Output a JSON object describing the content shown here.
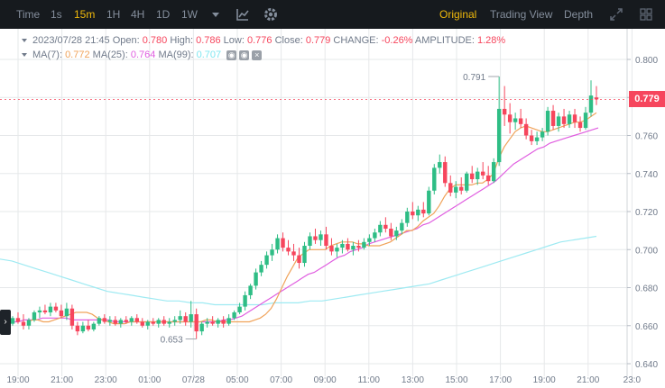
{
  "toolbar": {
    "intervals": [
      "Time",
      "1s",
      "15m",
      "1H",
      "4H",
      "1D",
      "1W"
    ],
    "active_interval": "15m",
    "views": [
      "Original",
      "Trading View",
      "Depth"
    ],
    "active_view": "Original",
    "icons": [
      "chevron-down-icon",
      "indicator-icon",
      "gear-icon",
      "expand-icon",
      "grid-icon"
    ]
  },
  "ohlc": {
    "datetime": "2023/07/28 21:45",
    "open_label": "Open:",
    "open": "0.780",
    "high_label": "High:",
    "high": "0.786",
    "low_label": "Low:",
    "low": "0.776",
    "close_label": "Close:",
    "close": "0.779",
    "change_label": "CHANGE:",
    "change": "-0.26%",
    "amplitude_label": "AMPLITUDE:",
    "amplitude": "1.28%"
  },
  "ma": {
    "ma7_label": "MA(7):",
    "ma7": "0.772",
    "ma25_label": "MA(25):",
    "ma25": "0.764",
    "ma99_label": "MA(99):",
    "ma99": "0.707"
  },
  "last_price": "0.779",
  "colors": {
    "up": "#2ebd85",
    "down": "#f6465d",
    "ma7": "#f0a35a",
    "ma25": "#e05ee0",
    "ma99": "#9eeaf2",
    "accent": "#f0b90b"
  },
  "chart_data": {
    "type": "candlestick",
    "y_ticks": [
      "0.800",
      "0.780",
      "0.760",
      "0.740",
      "0.720",
      "0.700",
      "0.680",
      "0.660",
      "0.640"
    ],
    "y_range": [
      0.64,
      0.8
    ],
    "x_ticks": [
      "19:00",
      "21:00",
      "23:00",
      "01:00",
      "07/28",
      "05:00",
      "07:00",
      "09:00",
      "11:00",
      "13:00",
      "15:00",
      "17:00",
      "19:00",
      "21:00",
      "23:0"
    ],
    "max_marker": "0.791",
    "min_marker": "0.653",
    "candles": [
      [
        0.661,
        0.663,
        0.658,
        0.661
      ],
      [
        0.661,
        0.665,
        0.66,
        0.664
      ],
      [
        0.664,
        0.667,
        0.661,
        0.662
      ],
      [
        0.662,
        0.666,
        0.658,
        0.66
      ],
      [
        0.66,
        0.664,
        0.658,
        0.663
      ],
      [
        0.663,
        0.668,
        0.662,
        0.667
      ],
      [
        0.667,
        0.67,
        0.664,
        0.668
      ],
      [
        0.668,
        0.671,
        0.666,
        0.667
      ],
      [
        0.667,
        0.672,
        0.665,
        0.67
      ],
      [
        0.67,
        0.672,
        0.667,
        0.668
      ],
      [
        0.668,
        0.671,
        0.664,
        0.665
      ],
      [
        0.665,
        0.672,
        0.663,
        0.669
      ],
      [
        0.669,
        0.671,
        0.658,
        0.66
      ],
      [
        0.66,
        0.662,
        0.655,
        0.657
      ],
      [
        0.657,
        0.662,
        0.656,
        0.66
      ],
      [
        0.66,
        0.663,
        0.657,
        0.658
      ],
      [
        0.658,
        0.662,
        0.657,
        0.661
      ],
      [
        0.661,
        0.665,
        0.66,
        0.664
      ],
      [
        0.664,
        0.666,
        0.661,
        0.662
      ],
      [
        0.662,
        0.665,
        0.66,
        0.663
      ],
      [
        0.663,
        0.665,
        0.66,
        0.661
      ],
      [
        0.661,
        0.664,
        0.659,
        0.663
      ],
      [
        0.663,
        0.665,
        0.661,
        0.662
      ],
      [
        0.662,
        0.665,
        0.66,
        0.664
      ],
      [
        0.664,
        0.666,
        0.661,
        0.662
      ],
      [
        0.662,
        0.664,
        0.659,
        0.66
      ],
      [
        0.66,
        0.663,
        0.658,
        0.662
      ],
      [
        0.662,
        0.664,
        0.66,
        0.661
      ],
      [
        0.661,
        0.664,
        0.659,
        0.663
      ],
      [
        0.663,
        0.665,
        0.66,
        0.661
      ],
      [
        0.661,
        0.664,
        0.659,
        0.662
      ],
      [
        0.662,
        0.665,
        0.66,
        0.663
      ],
      [
        0.663,
        0.668,
        0.661,
        0.665
      ],
      [
        0.665,
        0.667,
        0.66,
        0.662
      ],
      [
        0.662,
        0.673,
        0.659,
        0.666
      ],
      [
        0.666,
        0.669,
        0.653,
        0.657
      ],
      [
        0.657,
        0.662,
        0.655,
        0.661
      ],
      [
        0.661,
        0.664,
        0.659,
        0.662
      ],
      [
        0.662,
        0.665,
        0.66,
        0.661
      ],
      [
        0.661,
        0.664,
        0.659,
        0.663
      ],
      [
        0.663,
        0.665,
        0.659,
        0.661
      ],
      [
        0.661,
        0.666,
        0.66,
        0.664
      ],
      [
        0.664,
        0.668,
        0.663,
        0.667
      ],
      [
        0.667,
        0.672,
        0.666,
        0.67
      ],
      [
        0.67,
        0.678,
        0.668,
        0.676
      ],
      [
        0.676,
        0.682,
        0.674,
        0.681
      ],
      [
        0.681,
        0.69,
        0.679,
        0.688
      ],
      [
        0.688,
        0.694,
        0.686,
        0.692
      ],
      [
        0.692,
        0.699,
        0.69,
        0.697
      ],
      [
        0.697,
        0.703,
        0.694,
        0.7
      ],
      [
        0.7,
        0.708,
        0.698,
        0.706
      ],
      [
        0.706,
        0.709,
        0.699,
        0.701
      ],
      [
        0.701,
        0.705,
        0.697,
        0.699
      ],
      [
        0.699,
        0.703,
        0.694,
        0.697
      ],
      [
        0.697,
        0.701,
        0.69,
        0.693
      ],
      [
        0.693,
        0.704,
        0.691,
        0.702
      ],
      [
        0.702,
        0.709,
        0.7,
        0.707
      ],
      [
        0.707,
        0.711,
        0.703,
        0.705
      ],
      [
        0.705,
        0.71,
        0.702,
        0.708
      ],
      [
        0.708,
        0.712,
        0.7,
        0.702
      ],
      [
        0.702,
        0.706,
        0.697,
        0.699
      ],
      [
        0.699,
        0.703,
        0.696,
        0.701
      ],
      [
        0.701,
        0.705,
        0.698,
        0.703
      ],
      [
        0.703,
        0.706,
        0.699,
        0.7
      ],
      [
        0.7,
        0.704,
        0.697,
        0.702
      ],
      [
        0.702,
        0.705,
        0.699,
        0.701
      ],
      [
        0.701,
        0.706,
        0.7,
        0.704
      ],
      [
        0.704,
        0.708,
        0.702,
        0.706
      ],
      [
        0.706,
        0.711,
        0.704,
        0.709
      ],
      [
        0.709,
        0.715,
        0.707,
        0.713
      ],
      [
        0.713,
        0.717,
        0.709,
        0.711
      ],
      [
        0.711,
        0.714,
        0.705,
        0.707
      ],
      [
        0.707,
        0.712,
        0.705,
        0.71
      ],
      [
        0.71,
        0.716,
        0.708,
        0.714
      ],
      [
        0.714,
        0.722,
        0.712,
        0.72
      ],
      [
        0.72,
        0.725,
        0.716,
        0.718
      ],
      [
        0.718,
        0.723,
        0.715,
        0.721
      ],
      [
        0.721,
        0.725,
        0.717,
        0.719
      ],
      [
        0.719,
        0.733,
        0.718,
        0.731
      ],
      [
        0.731,
        0.745,
        0.729,
        0.743
      ],
      [
        0.743,
        0.75,
        0.74,
        0.746
      ],
      [
        0.746,
        0.749,
        0.733,
        0.735
      ],
      [
        0.735,
        0.739,
        0.728,
        0.73
      ],
      [
        0.73,
        0.736,
        0.727,
        0.733
      ],
      [
        0.733,
        0.738,
        0.729,
        0.731
      ],
      [
        0.731,
        0.741,
        0.73,
        0.74
      ],
      [
        0.74,
        0.744,
        0.735,
        0.737
      ],
      [
        0.737,
        0.743,
        0.734,
        0.741
      ],
      [
        0.741,
        0.746,
        0.737,
        0.739
      ],
      [
        0.739,
        0.744,
        0.734,
        0.736
      ],
      [
        0.736,
        0.748,
        0.735,
        0.746
      ],
      [
        0.746,
        0.791,
        0.744,
        0.774
      ],
      [
        0.774,
        0.786,
        0.765,
        0.771
      ],
      [
        0.771,
        0.777,
        0.761,
        0.767
      ],
      [
        0.767,
        0.772,
        0.763,
        0.769
      ],
      [
        0.769,
        0.774,
        0.764,
        0.766
      ],
      [
        0.766,
        0.769,
        0.758,
        0.76
      ],
      [
        0.76,
        0.763,
        0.755,
        0.757
      ],
      [
        0.757,
        0.762,
        0.755,
        0.759
      ],
      [
        0.759,
        0.764,
        0.757,
        0.762
      ],
      [
        0.762,
        0.775,
        0.76,
        0.773
      ],
      [
        0.773,
        0.776,
        0.763,
        0.765
      ],
      [
        0.765,
        0.772,
        0.762,
        0.77
      ],
      [
        0.77,
        0.774,
        0.764,
        0.766
      ],
      [
        0.766,
        0.773,
        0.764,
        0.771
      ],
      [
        0.771,
        0.774,
        0.764,
        0.767
      ],
      [
        0.767,
        0.77,
        0.762,
        0.764
      ],
      [
        0.764,
        0.775,
        0.763,
        0.772
      ],
      [
        0.772,
        0.789,
        0.77,
        0.781
      ],
      [
        0.78,
        0.786,
        0.776,
        0.779
      ]
    ],
    "ma7": [
      0.662,
      0.663,
      0.663,
      0.662,
      0.662,
      0.663,
      0.664,
      0.665,
      0.666,
      0.667,
      0.667,
      0.667,
      0.666,
      0.664,
      0.663,
      0.662,
      0.661,
      0.661,
      0.661,
      0.662,
      0.662,
      0.662,
      0.662,
      0.662,
      0.662,
      0.662,
      0.662,
      0.662,
      0.662,
      0.662,
      0.662,
      0.662,
      0.662,
      0.663,
      0.663,
      0.662,
      0.662,
      0.662,
      0.662,
      0.662,
      0.662,
      0.662,
      0.663,
      0.664,
      0.666,
      0.669,
      0.674,
      0.68,
      0.686,
      0.691,
      0.696,
      0.698,
      0.7,
      0.7,
      0.7,
      0.7,
      0.702,
      0.703,
      0.704,
      0.704,
      0.704,
      0.703,
      0.703,
      0.702,
      0.702,
      0.702,
      0.703,
      0.704,
      0.706,
      0.708,
      0.71,
      0.71,
      0.712,
      0.715,
      0.717,
      0.719,
      0.723,
      0.728,
      0.732,
      0.734,
      0.734,
      0.734,
      0.734,
      0.735,
      0.735,
      0.737,
      0.74,
      0.748,
      0.754,
      0.758,
      0.762,
      0.764,
      0.765,
      0.764,
      0.763,
      0.762,
      0.762,
      0.763,
      0.764,
      0.765,
      0.766,
      0.767,
      0.767,
      0.768,
      0.77,
      0.772
    ],
    "ma25": [
      0.661,
      0.662,
      0.662,
      0.662,
      0.663,
      0.663,
      0.663,
      0.664,
      0.664,
      0.664,
      0.664,
      0.664,
      0.663,
      0.663,
      0.663,
      0.663,
      0.663,
      0.663,
      0.663,
      0.662,
      0.662,
      0.662,
      0.662,
      0.662,
      0.662,
      0.662,
      0.662,
      0.662,
      0.662,
      0.662,
      0.662,
      0.662,
      0.662,
      0.662,
      0.662,
      0.662,
      0.662,
      0.663,
      0.663,
      0.664,
      0.665,
      0.667,
      0.669,
      0.671,
      0.673,
      0.675,
      0.677,
      0.679,
      0.681,
      0.683,
      0.685,
      0.687,
      0.688,
      0.69,
      0.692,
      0.694,
      0.696,
      0.697,
      0.699,
      0.7,
      0.701,
      0.703,
      0.704,
      0.705,
      0.706,
      0.707,
      0.708,
      0.709,
      0.71,
      0.711,
      0.713,
      0.714,
      0.716,
      0.718,
      0.72,
      0.722,
      0.724,
      0.726,
      0.728,
      0.73,
      0.732,
      0.734,
      0.736,
      0.739,
      0.742,
      0.745,
      0.747,
      0.749,
      0.751,
      0.753,
      0.754,
      0.756,
      0.757,
      0.758,
      0.759,
      0.76,
      0.761,
      0.762,
      0.763,
      0.764
    ],
    "ma99": [
      0.695,
      0.694,
      0.692,
      0.69,
      0.688,
      0.686,
      0.684,
      0.682,
      0.68,
      0.678,
      0.677,
      0.676,
      0.675,
      0.674,
      0.673,
      0.673,
      0.672,
      0.672,
      0.671,
      0.671,
      0.671,
      0.671,
      0.671,
      0.672,
      0.672,
      0.672,
      0.673,
      0.673,
      0.674,
      0.675,
      0.676,
      0.677,
      0.678,
      0.679,
      0.68,
      0.681,
      0.682,
      0.684,
      0.686,
      0.688,
      0.69,
      0.692,
      0.694,
      0.696,
      0.698,
      0.7,
      0.702,
      0.704,
      0.705,
      0.706,
      0.707
    ]
  }
}
